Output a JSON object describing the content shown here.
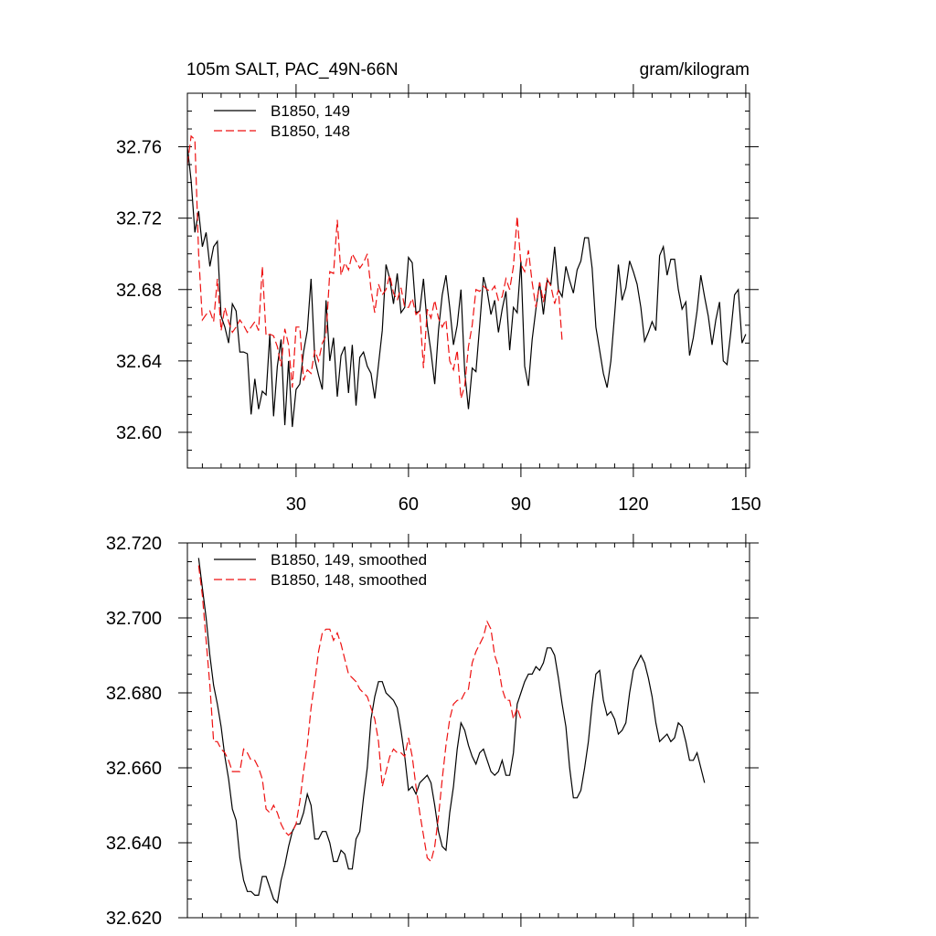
{
  "chart_data": [
    {
      "type": "line",
      "title_left": "105m SALT, PAC_49N-66N",
      "title_right": "gram/kilogram",
      "xlim": [
        1,
        151
      ],
      "ylim": [
        32.58,
        32.79
      ],
      "x_ticks": [
        30,
        60,
        90,
        120,
        150
      ],
      "x_tick_labels": [
        "30",
        "60",
        "90",
        "120",
        "150"
      ],
      "y_ticks": [
        32.6,
        32.64,
        32.68,
        32.72,
        32.76
      ],
      "y_tick_labels": [
        "32.60",
        "32.64",
        "32.68",
        "32.72",
        "32.76"
      ],
      "x_minor_step": 5,
      "y_minor_step": 0.01,
      "series": [
        {
          "name": "B1850, 149",
          "color": "#000000",
          "dash": false,
          "x_start": 1,
          "values": [
            32.76,
            32.741,
            32.712,
            32.724,
            32.704,
            32.712,
            32.693,
            32.704,
            32.707,
            32.665,
            32.659,
            32.65,
            32.672,
            32.668,
            32.645,
            32.645,
            32.644,
            32.61,
            32.63,
            32.613,
            32.623,
            32.621,
            32.655,
            32.609,
            32.637,
            32.652,
            32.604,
            32.64,
            32.603,
            32.624,
            32.627,
            32.645,
            32.657,
            32.686,
            32.641,
            32.632,
            32.624,
            32.674,
            32.64,
            32.653,
            32.62,
            32.643,
            32.648,
            32.622,
            32.649,
            32.615,
            32.642,
            32.645,
            32.637,
            32.633,
            32.619,
            32.638,
            32.657,
            32.694,
            32.686,
            32.672,
            32.689,
            32.667,
            32.67,
            32.698,
            32.695,
            32.667,
            32.668,
            32.686,
            32.66,
            32.645,
            32.627,
            32.657,
            32.677,
            32.688,
            32.67,
            32.649,
            32.66,
            32.68,
            32.634,
            32.613,
            32.636,
            32.634,
            32.66,
            32.687,
            32.679,
            32.666,
            32.674,
            32.656,
            32.669,
            32.679,
            32.646,
            32.67,
            32.667,
            32.696,
            32.637,
            32.626,
            32.652,
            32.669,
            32.684,
            32.666,
            32.685,
            32.683,
            32.704,
            32.68,
            32.676,
            32.693,
            32.685,
            32.678,
            32.691,
            32.696,
            32.709,
            32.709,
            32.692,
            32.659,
            32.646,
            32.633,
            32.625,
            32.64,
            32.666,
            32.694,
            32.674,
            32.681,
            32.696,
            32.69,
            32.683,
            32.67,
            32.651,
            32.656,
            32.662,
            32.657,
            32.699,
            32.704,
            32.688,
            32.697,
            32.697,
            32.68,
            32.669,
            32.673,
            32.643,
            32.653,
            32.668,
            32.688,
            32.676,
            32.665,
            32.649,
            32.663,
            32.673,
            32.64,
            32.638,
            32.656,
            32.677,
            32.68,
            32.65,
            32.655
          ]
        },
        {
          "name": "B1850, 148",
          "color": "#ee1111",
          "dash": true,
          "x_start": 1,
          "values": [
            32.75,
            32.766,
            32.764,
            32.7,
            32.663,
            32.666,
            32.668,
            32.662,
            32.686,
            32.657,
            32.67,
            32.662,
            32.656,
            32.659,
            32.663,
            32.66,
            32.656,
            32.659,
            32.662,
            32.657,
            32.693,
            32.654,
            32.655,
            32.654,
            32.648,
            32.637,
            32.658,
            32.649,
            32.625,
            32.659,
            32.659,
            32.629,
            32.635,
            32.633,
            32.646,
            32.64,
            32.65,
            32.654,
            32.69,
            32.689,
            32.719,
            32.688,
            32.695,
            32.691,
            32.7,
            32.696,
            32.692,
            32.695,
            32.7,
            32.68,
            32.667,
            32.683,
            32.677,
            32.68,
            32.688,
            32.678,
            32.674,
            32.681,
            32.67,
            32.67,
            32.675,
            32.666,
            32.668,
            32.636,
            32.669,
            32.664,
            32.674,
            32.664,
            32.659,
            32.663,
            32.64,
            32.635,
            32.646,
            32.619,
            32.626,
            32.648,
            32.66,
            32.68,
            32.679,
            32.682,
            32.68,
            32.679,
            32.682,
            32.674,
            32.676,
            32.686,
            32.68,
            32.693,
            32.721,
            32.694,
            32.69,
            32.702,
            32.684,
            32.67,
            32.684,
            32.673,
            32.686,
            32.682,
            32.672,
            32.68,
            32.651
          ]
        }
      ],
      "legend": [
        "B1850, 149",
        "B1850, 148"
      ]
    },
    {
      "type": "line",
      "xlim": [
        1,
        151
      ],
      "ylim": [
        32.62,
        32.72
      ],
      "x_ticks": [
        30,
        60,
        90,
        120,
        150
      ],
      "y_ticks": [
        32.62,
        32.64,
        32.66,
        32.68,
        32.7,
        32.72
      ],
      "y_tick_labels": [
        "32.620",
        "32.640",
        "32.660",
        "32.680",
        "32.700",
        "32.720"
      ],
      "x_minor_step": 5,
      "y_minor_step": 0.005,
      "series": [
        {
          "name": "B1850, 149, smoothed",
          "color": "#000000",
          "dash": false,
          "x_start": 4,
          "values": [
            32.716,
            32.708,
            32.7,
            32.69,
            32.682,
            32.677,
            32.671,
            32.663,
            32.657,
            32.649,
            32.646,
            32.636,
            32.63,
            32.627,
            32.627,
            32.626,
            32.626,
            32.631,
            32.631,
            32.628,
            32.625,
            32.624,
            32.63,
            32.634,
            32.639,
            32.643,
            32.645,
            32.645,
            32.648,
            32.653,
            32.65,
            32.641,
            32.641,
            32.643,
            32.643,
            32.64,
            32.635,
            32.635,
            32.638,
            32.637,
            32.633,
            32.633,
            32.641,
            32.643,
            32.652,
            32.66,
            32.673,
            32.679,
            32.683,
            32.683,
            32.68,
            32.679,
            32.678,
            32.676,
            32.67,
            32.663,
            32.654,
            32.655,
            32.653,
            32.656,
            32.657,
            32.658,
            32.656,
            32.65,
            32.643,
            32.639,
            32.638,
            32.648,
            32.655,
            32.665,
            32.672,
            32.67,
            32.666,
            32.663,
            32.661,
            32.664,
            32.665,
            32.662,
            32.659,
            32.658,
            32.659,
            32.662,
            32.658,
            32.658,
            32.664,
            32.677,
            32.68,
            32.683,
            32.685,
            32.685,
            32.687,
            32.686,
            32.688,
            32.692,
            32.692,
            32.69,
            32.684,
            32.677,
            32.671,
            32.66,
            32.652,
            32.652,
            32.654,
            32.66,
            32.667,
            32.677,
            32.685,
            32.686,
            32.678,
            32.674,
            32.675,
            32.673,
            32.669,
            32.67,
            32.672,
            32.68,
            32.686,
            32.688,
            32.69,
            32.688,
            32.684,
            32.679,
            32.672,
            32.667,
            32.668,
            32.669,
            32.667,
            32.668,
            32.672,
            32.671,
            32.667,
            32.662,
            32.662,
            32.664,
            32.66,
            32.656
          ]
        },
        {
          "name": "B1850, 148, smoothed",
          "color": "#ee1111",
          "dash": true,
          "x_start": 4,
          "values": [
            32.714,
            32.706,
            32.694,
            32.682,
            32.667,
            32.667,
            32.665,
            32.664,
            32.662,
            32.659,
            32.659,
            32.659,
            32.665,
            32.664,
            32.662,
            32.662,
            32.66,
            32.657,
            32.649,
            32.648,
            32.65,
            32.648,
            32.645,
            32.643,
            32.642,
            32.643,
            32.645,
            32.651,
            32.659,
            32.666,
            32.676,
            32.683,
            32.691,
            32.696,
            32.697,
            32.697,
            32.694,
            32.696,
            32.693,
            32.689,
            32.685,
            32.684,
            32.683,
            32.681,
            32.68,
            32.679,
            32.676,
            32.673,
            32.667,
            32.655,
            32.659,
            32.663,
            32.665,
            32.664,
            32.664,
            32.663,
            32.668,
            32.663,
            32.655,
            32.648,
            32.642,
            32.636,
            32.635,
            32.639,
            32.647,
            32.657,
            32.666,
            32.673,
            32.677,
            32.678,
            32.678,
            32.68,
            32.681,
            32.688,
            32.691,
            32.693,
            32.695,
            32.699,
            32.697,
            32.69,
            32.687,
            32.681,
            32.678,
            32.678,
            32.673,
            32.676,
            32.673
          ]
        }
      ],
      "legend": [
        "B1850, 149, smoothed",
        "B1850, 148, smoothed"
      ]
    }
  ]
}
